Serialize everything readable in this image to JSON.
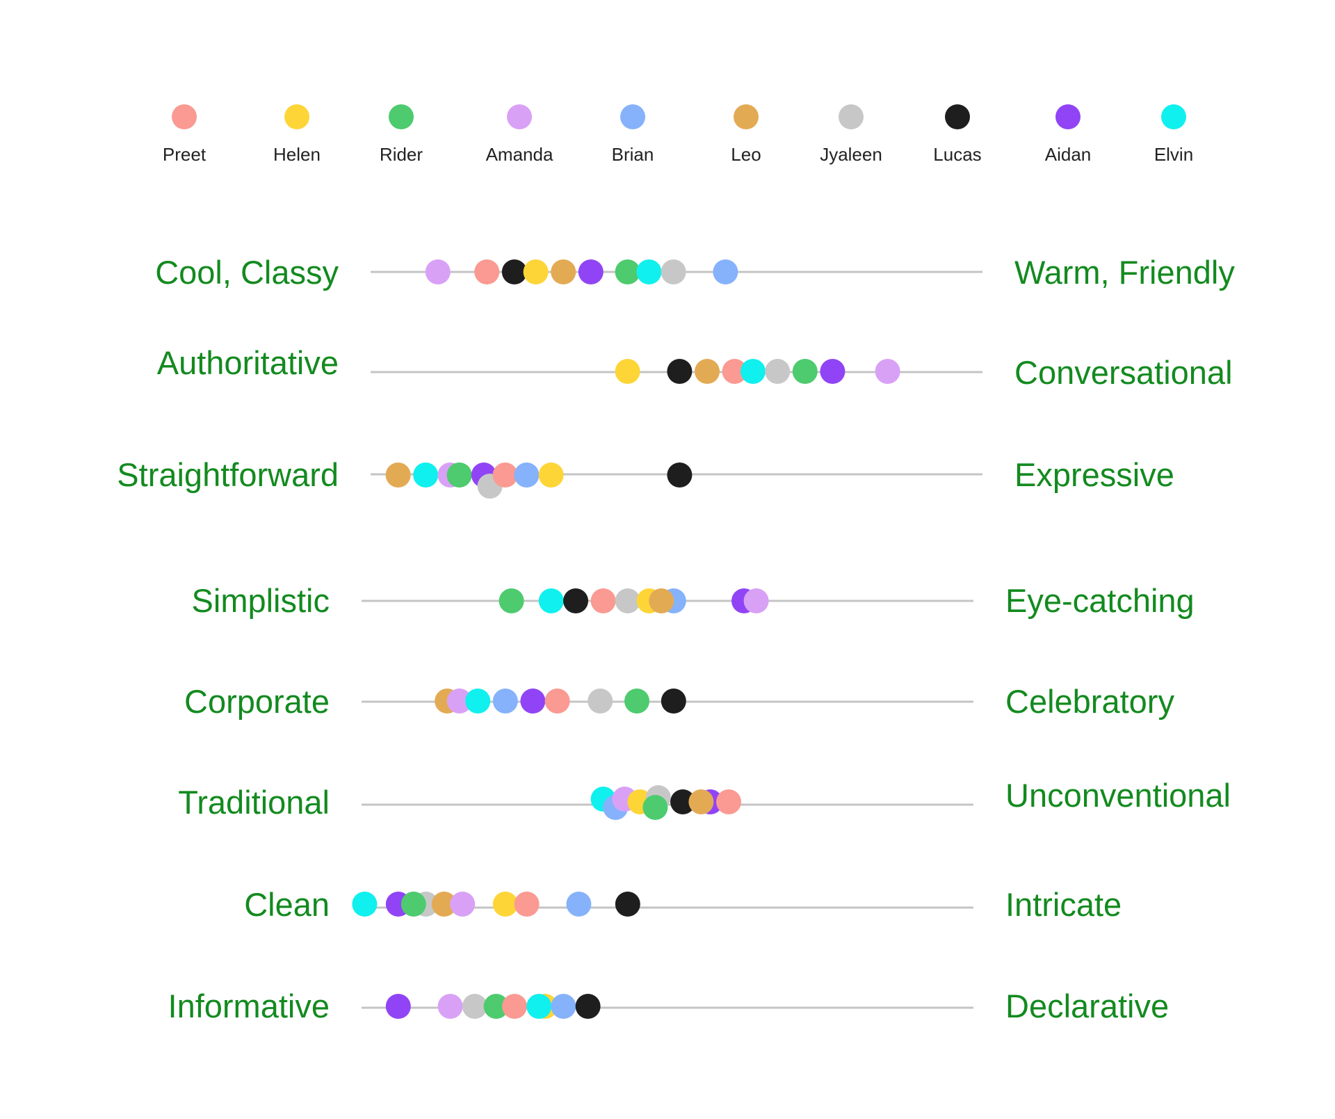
{
  "chart_data": {
    "type": "scatter",
    "scale": [
      0,
      100
    ],
    "people": [
      {
        "name": "Preet",
        "color": "#fa9a92"
      },
      {
        "name": "Helen",
        "color": "#fdd537"
      },
      {
        "name": "Rider",
        "color": "#4dcb6e"
      },
      {
        "name": "Amanda",
        "color": "#d9a1f6"
      },
      {
        "name": "Brian",
        "color": "#86b2fb"
      },
      {
        "name": "Leo",
        "color": "#e3aa54"
      },
      {
        "name": "Jyaleen",
        "color": "#c7c7c7"
      },
      {
        "name": "Lucas",
        "color": "#1e1e1e"
      },
      {
        "name": "Aidan",
        "color": "#9144f5"
      },
      {
        "name": "Elvin",
        "color": "#10f0ee"
      }
    ],
    "dimensions": [
      {
        "left": "Cool, Classy",
        "right": "Warm, Friendly",
        "values": {
          "Amanda": 11,
          "Preet": 19,
          "Lucas": 23.5,
          "Helen": 27,
          "Leo": 31.5,
          "Aidan": 36,
          "Rider": 42,
          "Elvin": 45.5,
          "Jyaleen": 49.5,
          "Brian": 58
        }
      },
      {
        "left": "Authoritative",
        "right": "Conversational",
        "values": {
          "Helen": 42,
          "Lucas": 50.5,
          "Leo": 55,
          "Preet": 59.5,
          "Elvin": 62.5,
          "Jyaleen": 66.5,
          "Rider": 71,
          "Aidan": 75.5,
          "Amanda": 84.5
        }
      },
      {
        "left": "Straightforward",
        "right": "Expressive",
        "values": {
          "Leo": 4.5,
          "Elvin": 9,
          "Amanda": 13,
          "Rider": 14.5,
          "Aidan": 18.5,
          "Jyaleen": 19.5,
          "Preet": 22,
          "Brian": 25.5,
          "Helen": 29.5,
          "Lucas": 50.5
        }
      },
      {
        "left": "Simplistic",
        "right": "Eye-catching",
        "values": {
          "Rider": 24.5,
          "Elvin": 31,
          "Lucas": 35,
          "Preet": 39.5,
          "Jyaleen": 43.5,
          "Helen": 47,
          "Brian": 51,
          "Leo": 49,
          "Aidan": 62.5,
          "Amanda": 64.5
        }
      },
      {
        "left": "Corporate",
        "right": "Celebratory",
        "values": {
          "Leo": 14,
          "Amanda": 16,
          "Elvin": 19,
          "Brian": 23.5,
          "Aidan": 28,
          "Preet": 32,
          "Jyaleen": 39,
          "Rider": 45,
          "Lucas": 51
        }
      },
      {
        "left": "Traditional",
        "right": "Unconventional",
        "values": {
          "Elvin": 39.5,
          "Brian": 41.5,
          "Amanda": 43,
          "Helen": 45.5,
          "Jyaleen": 48.5,
          "Rider": 48,
          "Lucas": 52.5,
          "Aidan": 57,
          "Leo": 55.5,
          "Preet": 60
        }
      },
      {
        "left": "Clean",
        "right": "Intricate",
        "values": {
          "Elvin": 0.5,
          "Aidan": 6,
          "Jyaleen": 10.5,
          "Rider": 8.5,
          "Leo": 13.5,
          "Amanda": 16.5,
          "Helen": 23.5,
          "Preet": 27,
          "Brian": 35.5,
          "Lucas": 43.5
        }
      },
      {
        "left": "Informative",
        "right": "Declarative",
        "values": {
          "Aidan": 6,
          "Amanda": 14.5,
          "Jyaleen": 18.5,
          "Rider": 22,
          "Preet": 25,
          "Helen": 30,
          "Elvin": 29,
          "Brian": 33,
          "Lucas": 37
        }
      }
    ]
  }
}
